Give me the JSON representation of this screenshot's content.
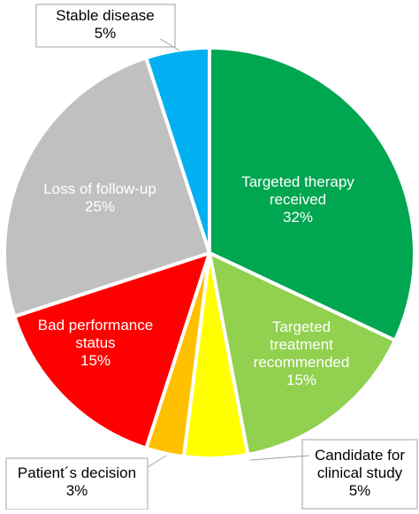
{
  "chart_data": {
    "type": "pie",
    "title": "",
    "slices": [
      {
        "label_lines": [
          "Targeted therapy",
          "received"
        ],
        "value": 32,
        "value_label": "32%",
        "color": "#00a650",
        "label_color": "#ffffff"
      },
      {
        "label_lines": [
          "Targeted",
          "treatment",
          "recommended"
        ],
        "value": 15,
        "value_label": "15%",
        "color": "#92d050",
        "label_color": "#ffffff"
      },
      {
        "label_lines": [
          "Candidate for",
          "clinical study"
        ],
        "value": 5,
        "value_label": "5%",
        "color": "#ffff00",
        "label_color": "#000000"
      },
      {
        "label_lines": [
          "Patient´s decision"
        ],
        "value": 3,
        "value_label": "3%",
        "color": "#ffc000",
        "label_color": "#000000"
      },
      {
        "label_lines": [
          "Bad performance",
          "status"
        ],
        "value": 15,
        "value_label": "15%",
        "color": "#ff0000",
        "label_color": "#ffffff"
      },
      {
        "label_lines": [
          "Loss of follow-up"
        ],
        "value": 25,
        "value_label": "25%",
        "color": "#c0c0c0",
        "label_color": "#ffffff"
      },
      {
        "label_lines": [
          "Stable disease"
        ],
        "value": 5,
        "value_label": "5%",
        "color": "#00b0f0",
        "label_color": "#000000"
      }
    ]
  }
}
